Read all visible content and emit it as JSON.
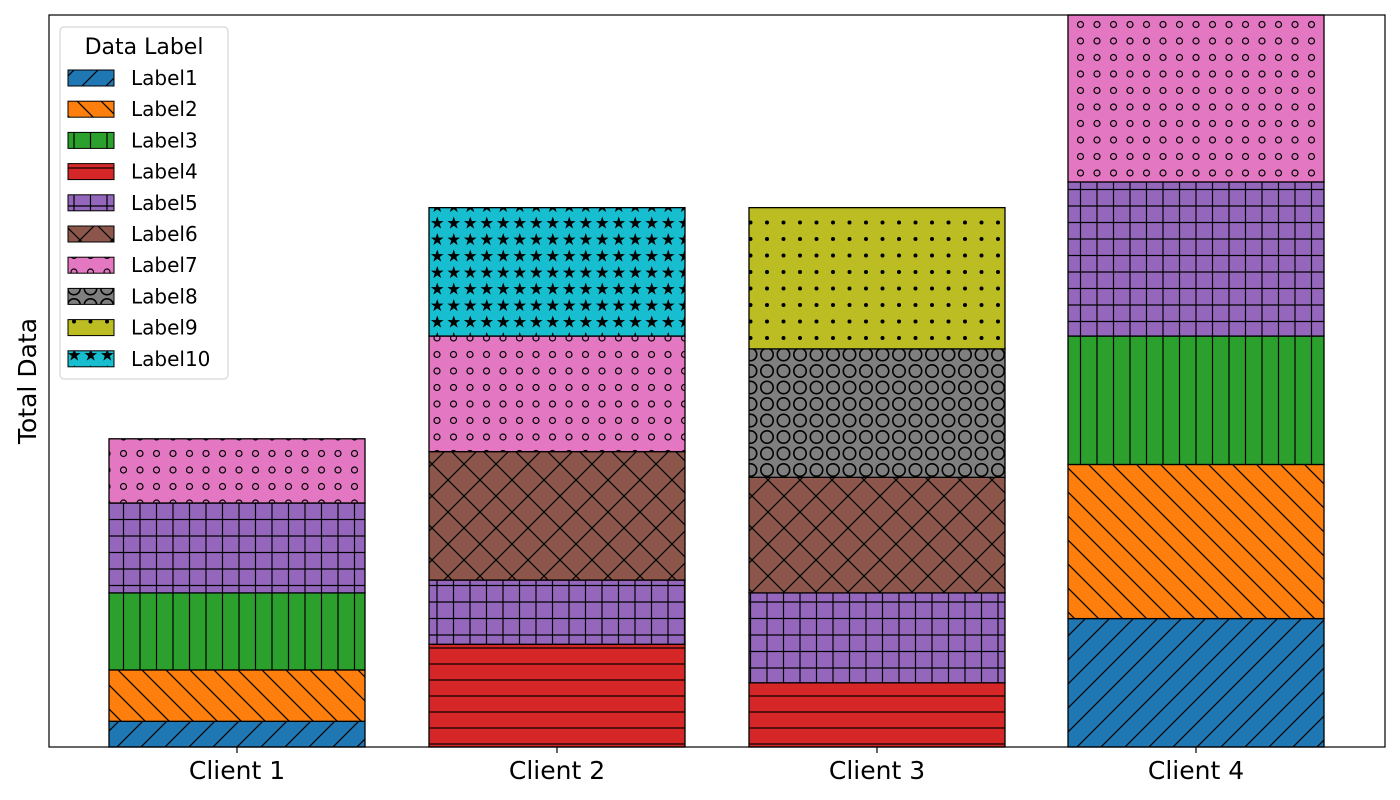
{
  "chart_data": {
    "type": "bar",
    "stacked": true,
    "title": "",
    "xlabel": "",
    "ylabel": "Total Data",
    "y_ticks_visible": false,
    "categories": [
      "Client 1",
      "Client 2",
      "Client 3",
      "Client 4"
    ],
    "ylim": [
      0,
      57
    ],
    "grid": false,
    "legend": {
      "title": "Data Label",
      "placement": "top-left"
    },
    "series": [
      {
        "name": "Label1",
        "values": [
          2,
          0,
          0,
          10
        ],
        "color": "#1f77b4",
        "hatch": "forward-diagonal"
      },
      {
        "name": "Label2",
        "values": [
          4,
          0,
          0,
          12
        ],
        "color": "#ff7f0e",
        "hatch": "back-diagonal"
      },
      {
        "name": "Label3",
        "values": [
          6,
          0,
          0,
          10
        ],
        "color": "#2ca02c",
        "hatch": "vertical"
      },
      {
        "name": "Label4",
        "values": [
          0,
          8,
          5,
          0
        ],
        "color": "#d62728",
        "hatch": "horizontal"
      },
      {
        "name": "Label5",
        "values": [
          7,
          5,
          7,
          12
        ],
        "color": "#9467bd",
        "hatch": "grid"
      },
      {
        "name": "Label6",
        "values": [
          0,
          10,
          9,
          0
        ],
        "color": "#8c564b",
        "hatch": "crosshatch"
      },
      {
        "name": "Label7",
        "values": [
          5,
          9,
          0,
          13
        ],
        "color": "#e377c2",
        "hatch": "small-circles"
      },
      {
        "name": "Label8",
        "values": [
          0,
          0,
          10,
          0
        ],
        "color": "#7f7f7f",
        "hatch": "large-circles"
      },
      {
        "name": "Label9",
        "values": [
          0,
          0,
          11,
          0
        ],
        "color": "#bcbd22",
        "hatch": "dots"
      },
      {
        "name": "Label10",
        "values": [
          0,
          10,
          0,
          0
        ],
        "color": "#17becf",
        "hatch": "stars"
      }
    ]
  }
}
